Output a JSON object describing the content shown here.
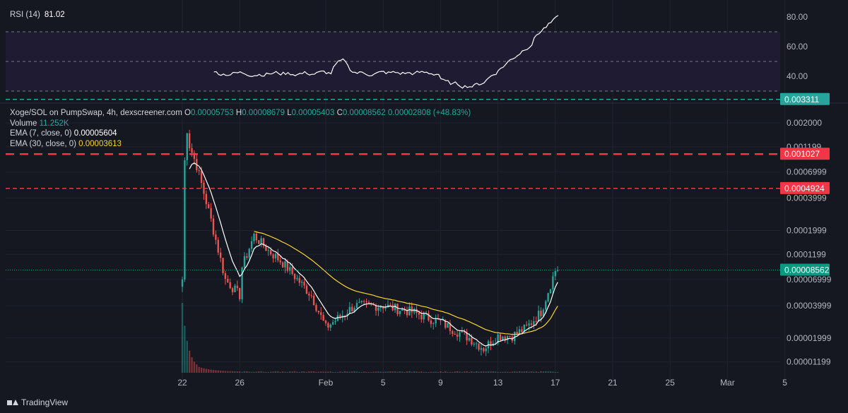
{
  "rsi": {
    "label": "RSI (14)",
    "value": "81.02",
    "ticks": [
      "80.00",
      "60.00",
      "40.00"
    ]
  },
  "legend": {
    "symbol": "Xoge/SOL on PumpSwap, 4h, dexscreener.com",
    "o_key": "O",
    "o_val": "0.00005753",
    "h_key": "H",
    "h_val": "0.00008679",
    "l_key": "L",
    "l_val": "0.00005403",
    "c_key": "C",
    "c_val": "0.00008562",
    "change": "0.00002808 (+48.83%)",
    "volume_label": "Volume",
    "volume_value": "11.252K",
    "ema7_label": "EMA (7, close, 0)",
    "ema7_value": "0.00005604",
    "ema30_label": "EMA (30, close, 0)",
    "ema30_value": "0.00003613"
  },
  "price_axis": {
    "ticks": [
      "0.002000",
      "0.001199",
      "0.0006999",
      "0.0003999",
      "0.0001999",
      "0.0001199",
      "0.00006999",
      "0.00003999",
      "0.00001999",
      "0.00001199"
    ],
    "tags": [
      {
        "name": "green-level-tag",
        "text": "0.003311",
        "color": "#26a69a"
      },
      {
        "name": "red-level-tag-1",
        "text": "0.001027",
        "color": "#f23645"
      },
      {
        "name": "red-level-tag-2",
        "text": "0.0004924",
        "color": "#f23645"
      },
      {
        "name": "last-price-tag",
        "text": "0.00008562",
        "color": "#089981"
      }
    ]
  },
  "time_axis": {
    "ticks": [
      "22",
      "26",
      "Feb",
      "5",
      "9",
      "13",
      "17",
      "21",
      "25",
      "Mar",
      "5"
    ]
  },
  "footer": {
    "brand": "TradingView"
  },
  "chart_data": {
    "type": "candlestick",
    "symbol": "Xoge/SOL",
    "interval": "4h",
    "scale": "log",
    "ohlc_last": {
      "open": 5.753e-05,
      "high": 8.679e-05,
      "low": 5.403e-05,
      "close": 8.562e-05
    },
    "price_anchors": [
      [
        "Jan 22",
        7e-05
      ],
      [
        "Jan 22",
        0.0009
      ],
      [
        "Jan 22",
        0.0019
      ],
      [
        "Jan 23",
        0.0008
      ],
      [
        "Jan 24",
        0.00025
      ],
      [
        "Jan 25",
        7e-05
      ],
      [
        "Jan 26",
        5e-05
      ],
      [
        "Jan 26",
        8e-05
      ],
      [
        "Jan 27",
        0.00018
      ],
      [
        "Jan 28",
        0.00013
      ],
      [
        "Jan 29",
        0.0001
      ],
      [
        "Jan 31",
        5e-05
      ],
      [
        "Feb 1",
        2.5e-05
      ],
      [
        "Feb 3",
        4e-05
      ],
      [
        "Feb 5",
        4e-05
      ],
      [
        "Feb 7",
        3.5e-05
      ],
      [
        "Feb 9",
        2.8e-05
      ],
      [
        "Feb 11",
        2e-05
      ],
      [
        "Feb 12",
        1.6e-05
      ],
      [
        "Feb 13",
        2.1e-05
      ],
      [
        "Feb 14",
        2.1e-05
      ],
      [
        "Feb 15",
        2.5e-05
      ],
      [
        "Feb 16",
        3.5e-05
      ],
      [
        "Feb 17",
        8.5e-05
      ]
    ],
    "ema7_last": 5.604e-05,
    "ema30_last": 3.613e-05,
    "levels": [
      {
        "price": 0.003311,
        "style": "dashed",
        "color": "#26a69a"
      },
      {
        "price": 0.001027,
        "style": "dashed",
        "color": "#f23645"
      },
      {
        "price": 0.0004924,
        "style": "dashed",
        "color": "#f23645"
      }
    ],
    "volume_last": "11.252K",
    "rsi_last": 81.02,
    "rsi_bands": [
      30,
      50,
      70
    ],
    "rsi_range": [
      25,
      85
    ],
    "colors": {
      "up": "#26a69a",
      "down": "#ef5350",
      "ema7": "#ffffff",
      "ema30": "#f5d431",
      "rsi": "#ffffff",
      "background": "#151821"
    }
  }
}
